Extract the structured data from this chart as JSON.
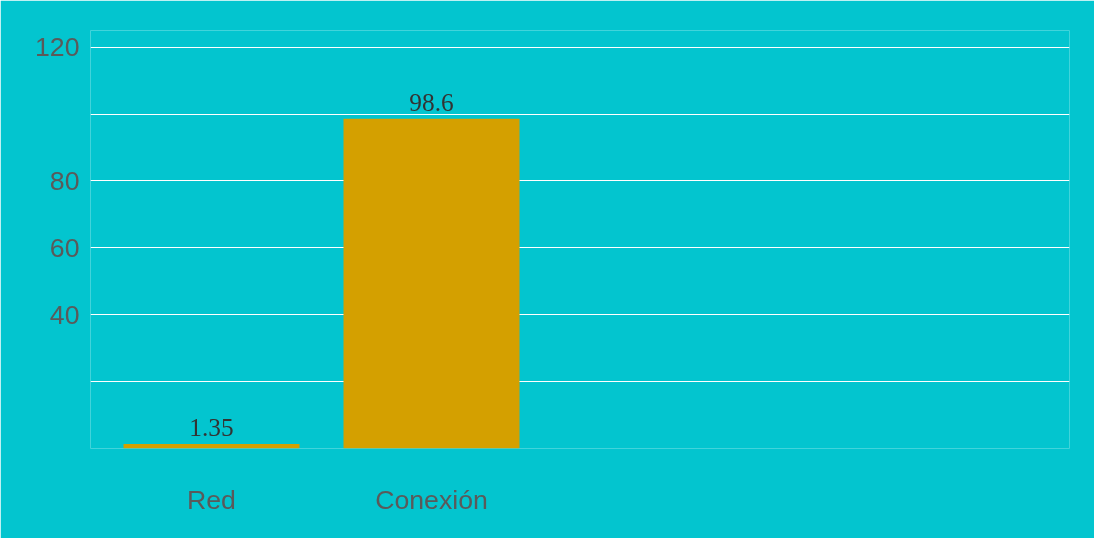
{
  "chart_data": {
    "type": "bar",
    "categories": [
      "Red",
      "Conexión"
    ],
    "values": [
      1.35,
      98.6
    ],
    "color": "#d4a000",
    "ylim": [
      0,
      125
    ],
    "yticks": [
      120,
      {
        "value": 100,
        "label": null
      },
      80,
      60,
      40,
      {
        "value": 20,
        "label": null
      },
      {
        "value": 0,
        "label": null
      }
    ],
    "grid": "y",
    "data_labels": true
  }
}
